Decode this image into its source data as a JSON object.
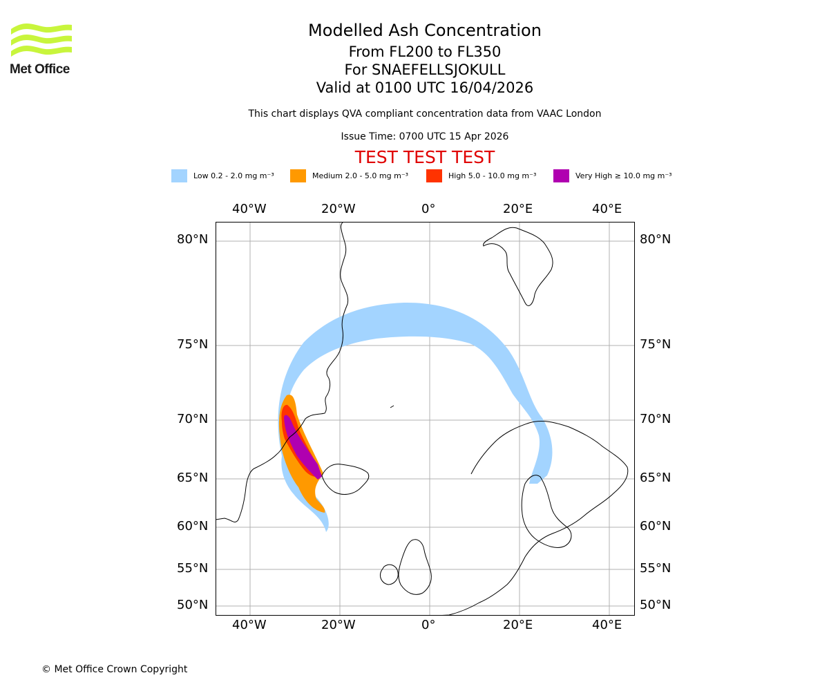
{
  "logo": {
    "text": "Met Office",
    "accent_color": "#c8f53c"
  },
  "header": {
    "title": "Modelled Ash Concentration",
    "flight_levels": "From FL200 to FL350",
    "volcano": "For SNAEFELLSJOKULL",
    "valid_time": "Valid at 0100 UTC 16/04/2026",
    "description": "This chart displays QVA compliant concentration data from VAAC London",
    "issue_time": "Issue Time: 0700 UTC 15 Apr 2026",
    "test_banner": "TEST TEST TEST"
  },
  "legend": [
    {
      "label": "Low 0.2 - 2.0 mg m⁻³",
      "color": "#a3d4ff"
    },
    {
      "label": "Medium 2.0 - 5.0 mg m⁻³",
      "color": "#ff9900"
    },
    {
      "label": "High 5.0 - 10.0 mg m⁻³",
      "color": "#ff3300"
    },
    {
      "label": "Very High ≥ 10.0 mg m⁻³",
      "color": "#b000b0"
    }
  ],
  "map": {
    "longitude_labels": [
      "40°W",
      "20°W",
      "0°",
      "20°E",
      "40°E"
    ],
    "latitude_labels": [
      "80°N",
      "75°N",
      "70°N",
      "65°N",
      "60°N",
      "55°N",
      "50°N"
    ],
    "gridline_color": "#b0b0b0"
  },
  "footer": {
    "copyright": "© Met Office Crown Copyright"
  }
}
